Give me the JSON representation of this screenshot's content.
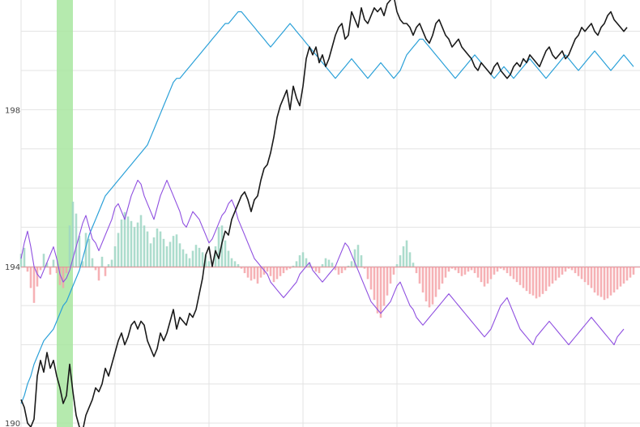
{
  "chart_data": {
    "type": "line",
    "title": "",
    "xlabel": "",
    "ylabel": "",
    "grid": true,
    "ylim": [
      189.9,
      200.8
    ],
    "xlim": [
      0,
      189
    ],
    "y_ticks": [
      "190",
      "194",
      "198"
    ],
    "y_tick_values": [
      190,
      194,
      198
    ],
    "highlight_band": {
      "x_start": 11.0,
      "x_end": 16.0,
      "color": "#a8e6a0"
    },
    "baseline": 193.98,
    "colors": {
      "price": "#1a1a1a",
      "blue": "#2aa0d8",
      "purple": "#8f4fe0",
      "bar_positive": "#9ed6c4",
      "bar_negative": "#f5a3a8",
      "grid": "#e3e3e3"
    },
    "series": [
      {
        "role": "price",
        "values": [
          190.6,
          190.4,
          190.0,
          189.9,
          190.1,
          191.2,
          191.6,
          191.3,
          191.8,
          191.4,
          191.6,
          191.2,
          190.9,
          190.5,
          190.7,
          191.5,
          190.8,
          190.2,
          189.9,
          189.8,
          190.2,
          190.4,
          190.6,
          190.9,
          190.8,
          191.0,
          191.4,
          191.2,
          191.5,
          191.8,
          192.1,
          192.3,
          192.0,
          192.2,
          192.5,
          192.6,
          192.4,
          192.6,
          192.5,
          192.1,
          191.9,
          191.7,
          191.9,
          192.3,
          192.1,
          192.3,
          192.6,
          192.9,
          192.4,
          192.7,
          192.6,
          192.5,
          192.8,
          192.7,
          192.9,
          193.3,
          193.7,
          194.3,
          194.5,
          194.0,
          194.4,
          194.2,
          194.6,
          194.9,
          194.8,
          195.2,
          195.4,
          195.6,
          195.8,
          195.9,
          195.7,
          195.4,
          195.7,
          195.8,
          196.2,
          196.5,
          196.6,
          196.9,
          197.3,
          197.8,
          198.1,
          198.3,
          198.5,
          198.0,
          198.6,
          198.3,
          198.1,
          198.6,
          199.3,
          199.6,
          199.4,
          199.6,
          199.2,
          199.4,
          199.1,
          199.3,
          199.6,
          199.9,
          200.1,
          200.2,
          199.8,
          199.9,
          200.5,
          200.3,
          200.1,
          200.6,
          200.3,
          200.2,
          200.4,
          200.6,
          200.5,
          200.6,
          200.4,
          200.7,
          200.8,
          200.9,
          200.5,
          200.3,
          200.2,
          200.2,
          200.1,
          199.9,
          200.1,
          200.2,
          200.0,
          199.8,
          199.7,
          199.9,
          200.2,
          200.3,
          200.1,
          199.9,
          199.8,
          199.6,
          199.7,
          199.8,
          199.6,
          199.5,
          199.4,
          199.3,
          199.1,
          199.0,
          199.2,
          199.1,
          199.0,
          198.9,
          199.1,
          199.2,
          199.0,
          198.9,
          198.8,
          198.9,
          199.1,
          199.2,
          199.1,
          199.3,
          199.2,
          199.4,
          199.3,
          199.2,
          199.1,
          199.3,
          199.5,
          199.6,
          199.4,
          199.3,
          199.4,
          199.5,
          199.3,
          199.4,
          199.6,
          199.8,
          199.9,
          200.1,
          200.0,
          200.1,
          200.2,
          200.0,
          199.9,
          200.1,
          200.2,
          200.4,
          200.5,
          200.3,
          200.2,
          200.1,
          200.0,
          200.1
        ]
      },
      {
        "role": "blue",
        "values": [
          190.5,
          190.7,
          191.0,
          191.2,
          191.5,
          191.7,
          191.9,
          192.1,
          192.2,
          192.3,
          192.4,
          192.6,
          192.8,
          193.0,
          193.1,
          193.3,
          193.5,
          193.7,
          193.9,
          194.2,
          194.5,
          194.8,
          195.0,
          195.2,
          195.4,
          195.6,
          195.8,
          195.9,
          196.0,
          196.1,
          196.2,
          196.3,
          196.4,
          196.5,
          196.6,
          196.7,
          196.8,
          196.9,
          197.0,
          197.1,
          197.3,
          197.5,
          197.7,
          197.9,
          198.1,
          198.3,
          198.5,
          198.7,
          198.8,
          198.8,
          198.9,
          199.0,
          199.1,
          199.2,
          199.3,
          199.4,
          199.5,
          199.6,
          199.7,
          199.8,
          199.9,
          200.0,
          200.1,
          200.2,
          200.2,
          200.3,
          200.4,
          200.5,
          200.5,
          200.4,
          200.3,
          200.2,
          200.1,
          200.0,
          199.9,
          199.8,
          199.7,
          199.6,
          199.7,
          199.8,
          199.9,
          200.0,
          200.1,
          200.2,
          200.1,
          200.0,
          199.9,
          199.8,
          199.7,
          199.6,
          199.5,
          199.4,
          199.3,
          199.2,
          199.1,
          199.0,
          198.9,
          198.8,
          198.9,
          199.0,
          199.1,
          199.2,
          199.3,
          199.2,
          199.1,
          199.0,
          198.9,
          198.8,
          198.9,
          199.0,
          199.1,
          199.2,
          199.1,
          199.0,
          198.9,
          198.8,
          198.9,
          199.0,
          199.2,
          199.4,
          199.5,
          199.6,
          199.7,
          199.8,
          199.8,
          199.7,
          199.6,
          199.5,
          199.4,
          199.3,
          199.2,
          199.1,
          199.0,
          198.9,
          198.8,
          198.9,
          199.0,
          199.1,
          199.2,
          199.3,
          199.4,
          199.3,
          199.2,
          199.1,
          199.0,
          198.9,
          198.8,
          198.9,
          199.0,
          199.1,
          199.0,
          198.9,
          198.8,
          198.9,
          199.0,
          199.1,
          199.2,
          199.3,
          199.2,
          199.1,
          199.0,
          198.9,
          198.8,
          198.9,
          199.0,
          199.1,
          199.2,
          199.3,
          199.4,
          199.3,
          199.2,
          199.1,
          199.0,
          199.1,
          199.2,
          199.3,
          199.4,
          199.5,
          199.4,
          199.3,
          199.2,
          199.1,
          199.0,
          199.1,
          199.2,
          199.3,
          199.4,
          199.3,
          199.2,
          199.1
        ]
      },
      {
        "role": "purple",
        "values": [
          194.2,
          194.6,
          194.9,
          194.5,
          194.0,
          193.8,
          193.7,
          193.9,
          194.1,
          194.3,
          194.5,
          194.2,
          193.8,
          193.6,
          193.7,
          193.9,
          194.2,
          194.5,
          194.8,
          195.1,
          195.3,
          195.0,
          194.7,
          194.6,
          194.4,
          194.6,
          194.8,
          195.0,
          195.2,
          195.5,
          195.6,
          195.4,
          195.2,
          195.5,
          195.8,
          196.0,
          196.2,
          196.1,
          195.8,
          195.6,
          195.4,
          195.2,
          195.5,
          195.8,
          196.0,
          196.2,
          196.0,
          195.8,
          195.6,
          195.4,
          195.1,
          195.0,
          195.2,
          195.4,
          195.3,
          195.2,
          195.0,
          194.8,
          194.6,
          194.7,
          194.9,
          195.1,
          195.3,
          195.4,
          195.6,
          195.7,
          195.5,
          195.2,
          195.0,
          194.8,
          194.6,
          194.4,
          194.2,
          194.1,
          194.0,
          193.9,
          193.8,
          193.6,
          193.5,
          193.4,
          193.3,
          193.2,
          193.3,
          193.4,
          193.5,
          193.6,
          193.8,
          193.9,
          194.0,
          194.1,
          193.9,
          193.8,
          193.7,
          193.6,
          193.7,
          193.8,
          193.9,
          194.0,
          194.2,
          194.4,
          194.6,
          194.5,
          194.3,
          194.1,
          193.9,
          193.7,
          193.5,
          193.3,
          193.1,
          193.0,
          192.9,
          192.8,
          192.9,
          193.0,
          193.1,
          193.3,
          193.5,
          193.6,
          193.4,
          193.2,
          193.0,
          192.9,
          192.7,
          192.6,
          192.5,
          192.6,
          192.7,
          192.8,
          192.9,
          193.0,
          193.1,
          193.2,
          193.3,
          193.2,
          193.1,
          193.0,
          192.9,
          192.8,
          192.7,
          192.6,
          192.5,
          192.4,
          192.3,
          192.2,
          192.3,
          192.4,
          192.6,
          192.8,
          193.0,
          193.1,
          193.2,
          193.0,
          192.8,
          192.6,
          192.4,
          192.3,
          192.2,
          192.1,
          192.0,
          192.2,
          192.3,
          192.4,
          192.5,
          192.6,
          192.5,
          192.4,
          192.3,
          192.2,
          192.1,
          192.0,
          192.1,
          192.2,
          192.3,
          192.4,
          192.5,
          192.6,
          192.7,
          192.6,
          192.5,
          192.4,
          192.3,
          192.2,
          192.1,
          192.0,
          192.2,
          192.3,
          192.4
        ]
      },
      {
        "role": "bars",
        "values": [
          0.9,
          1.3,
          -0.3,
          -1.4,
          -2.4,
          -1.3,
          -0.2,
          0.9,
          0.3,
          -0.5,
          0.5,
          -0.4,
          -1.2,
          -1.4,
          -0.4,
          2.8,
          4.4,
          3.6,
          2.1,
          0.4,
          2.3,
          1.9,
          0.6,
          -0.2,
          -0.9,
          0.7,
          -0.6,
          0.2,
          0.5,
          1.4,
          2.3,
          3.2,
          3.7,
          3.4,
          3.1,
          2.7,
          3.0,
          3.5,
          2.8,
          2.4,
          1.6,
          2.0,
          2.6,
          2.4,
          1.9,
          1.4,
          1.7,
          2.1,
          2.2,
          1.6,
          1.2,
          0.9,
          0.6,
          1.1,
          1.5,
          1.3,
          1.0,
          0.8,
          0.4,
          0.3,
          1.4,
          2.7,
          2.8,
          1.8,
          1.1,
          0.6,
          0.4,
          0.2,
          -0.1,
          -0.4,
          -0.7,
          -0.9,
          -0.8,
          -1.1,
          -0.7,
          -0.5,
          -0.3,
          -0.6,
          -1.0,
          -0.8,
          -0.6,
          -0.4,
          -0.2,
          -0.1,
          0.1,
          0.4,
          0.8,
          1.0,
          0.6,
          0.3,
          -0.1,
          -0.3,
          -0.4,
          0.2,
          0.6,
          0.5,
          0.3,
          -0.2,
          -0.5,
          -0.4,
          -0.2,
          0.1,
          0.4,
          1.2,
          1.5,
          0.8,
          -0.1,
          -0.8,
          -1.5,
          -2.2,
          -3.1,
          -3.4,
          -2.6,
          -1.9,
          -1.1,
          -0.5,
          0.2,
          0.8,
          1.4,
          1.8,
          1.0,
          0.3,
          -0.4,
          -1.1,
          -1.7,
          -2.3,
          -2.7,
          -2.5,
          -2.0,
          -1.5,
          -1.1,
          -0.7,
          -0.3,
          -0.1,
          -0.2,
          -0.4,
          -0.6,
          -0.5,
          -0.3,
          -0.2,
          -0.4,
          -0.7,
          -1.0,
          -1.3,
          -1.1,
          -0.8,
          -0.5,
          -0.3,
          -0.1,
          -0.2,
          -0.4,
          -0.6,
          -0.8,
          -1.0,
          -1.2,
          -1.4,
          -1.6,
          -1.8,
          -1.9,
          -2.1,
          -2.0,
          -1.8,
          -1.6,
          -1.3,
          -1.1,
          -0.9,
          -0.7,
          -0.5,
          -0.3,
          -0.1,
          -0.2,
          -0.4,
          -0.6,
          -0.8,
          -1.0,
          -1.2,
          -1.4,
          -1.7,
          -1.9,
          -2.0,
          -2.2,
          -2.1,
          -1.9,
          -1.7,
          -1.5,
          -1.3,
          -1.1,
          -0.9,
          -0.7,
          -0.5
        ]
      }
    ]
  }
}
